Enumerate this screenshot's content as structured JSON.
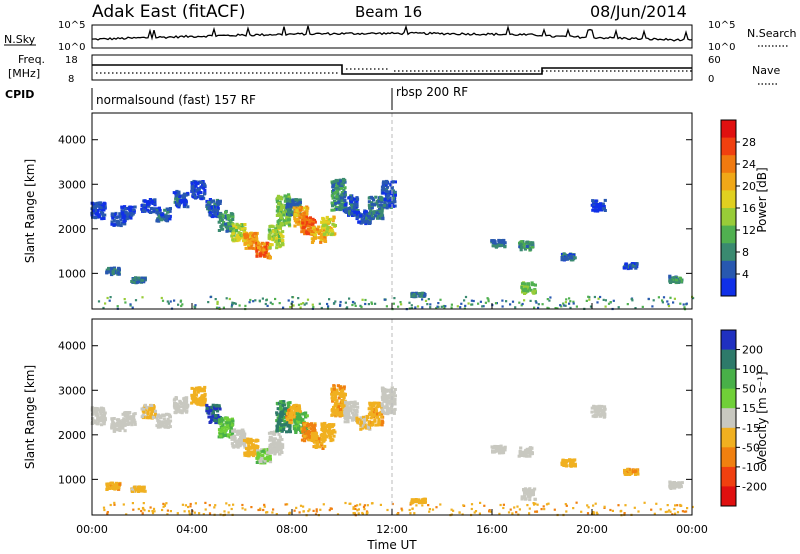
{
  "header": {
    "station": "Adak East (fitACF)",
    "beam": "Beam 16",
    "date": "08/Jun/2014"
  },
  "panels": {
    "nsky_label": "N.Sky",
    "nsearch_label": "N.Search",
    "freq_label_line1": "Freq.",
    "freq_label_line2": "[MHz]",
    "nave_label": "Nave",
    "cpid_label": "CPID",
    "nsky_ticks": [
      "10^5",
      "10^0"
    ],
    "nsearch_ticks": [
      "10^5",
      "10^0"
    ],
    "freq_ticks": [
      "18",
      "8"
    ],
    "nave_ticks": [
      "60",
      "0"
    ],
    "cpid_segments": [
      {
        "start_hour": 0,
        "label": "normalsound (fast) 157 RF"
      },
      {
        "start_hour": 12,
        "label": "rbsp 200 RF"
      }
    ]
  },
  "colorbars": {
    "power": {
      "label": "Power [dB]",
      "ticks": [
        "28",
        "24",
        "20",
        "16",
        "12",
        "8",
        "4"
      ],
      "colors": [
        "#e01010",
        "#f04010",
        "#f07a10",
        "#f0a818",
        "#e0d020",
        "#98cc38",
        "#50b050",
        "#3a8a70",
        "#2858b0",
        "#1030e8"
      ]
    },
    "velocity": {
      "label": "Velocity [m s⁻¹]",
      "ticks": [
        "200",
        "100",
        "50",
        "15",
        "-15",
        "-50",
        "-100",
        "-200"
      ],
      "colors": [
        "#2030c0",
        "#2e7a6a",
        "#48b048",
        "#70d038",
        "#c8c8c0",
        "#f0b020",
        "#f08010",
        "#f04010",
        "#e01010"
      ]
    }
  },
  "chart_data": [
    {
      "type": "heatmap",
      "name": "power",
      "ylabel": "Slant Range [km]",
      "ylim": [
        200,
        4600
      ],
      "yticks": [
        "1000",
        "2000",
        "3000",
        "4000"
      ],
      "xlim": [
        0,
        24
      ],
      "unit": "dB",
      "trace": [
        [
          0.2,
          2450,
          380,
          3
        ],
        [
          1.0,
          2250,
          300,
          3
        ],
        [
          1.4,
          2400,
          280,
          3
        ],
        [
          2.2,
          2550,
          300,
          3
        ],
        [
          2.8,
          2350,
          300,
          4
        ],
        [
          3.5,
          2700,
          350,
          4
        ],
        [
          4.2,
          2900,
          400,
          3
        ],
        [
          4.8,
          2500,
          400,
          4
        ],
        [
          5.3,
          2200,
          450,
          8
        ],
        [
          5.8,
          1950,
          400,
          14
        ],
        [
          6.3,
          1750,
          380,
          20
        ],
        [
          6.8,
          1550,
          350,
          22
        ],
        [
          7.3,
          1850,
          500,
          14
        ],
        [
          7.6,
          2450,
          700,
          12
        ],
        [
          8.0,
          2500,
          400,
          6
        ],
        [
          8.3,
          2300,
          450,
          20
        ],
        [
          8.6,
          2100,
          400,
          24
        ],
        [
          9.0,
          1900,
          350,
          20
        ],
        [
          9.4,
          2100,
          400,
          16
        ],
        [
          9.8,
          2800,
          700,
          8
        ],
        [
          10.3,
          2550,
          450,
          4
        ],
        [
          10.8,
          2300,
          300,
          4
        ],
        [
          11.3,
          2500,
          500,
          6
        ],
        [
          11.8,
          2800,
          600,
          4
        ],
        [
          0.8,
          1080,
          150,
          6
        ],
        [
          1.8,
          880,
          120,
          6
        ],
        [
          13.0,
          550,
          80,
          6
        ],
        [
          16.2,
          1700,
          160,
          6
        ],
        [
          17.3,
          1650,
          200,
          8
        ],
        [
          17.4,
          700,
          250,
          12
        ],
        [
          19.0,
          1400,
          150,
          5
        ],
        [
          20.2,
          2550,
          250,
          3
        ],
        [
          21.5,
          1200,
          120,
          4
        ],
        [
          23.3,
          900,
          150,
          8
        ]
      ]
    },
    {
      "type": "heatmap",
      "name": "velocity",
      "ylabel": "Slant Range [km]",
      "ylim": [
        200,
        4600
      ],
      "yticks": [
        "1000",
        "2000",
        "3000",
        "4000"
      ],
      "xlim": [
        0,
        24
      ],
      "xticks": [
        "00:00",
        "04:00",
        "08:00",
        "12:00",
        "16:00",
        "20:00",
        "00:00"
      ],
      "xlabel": "Time UT",
      "unit": "m/s",
      "trace": [
        [
          0.2,
          2450,
          380,
          0
        ],
        [
          1.0,
          2250,
          300,
          0
        ],
        [
          1.4,
          2400,
          280,
          0
        ],
        [
          2.2,
          2550,
          300,
          -20
        ],
        [
          2.8,
          2350,
          300,
          0
        ],
        [
          3.5,
          2700,
          350,
          0
        ],
        [
          4.2,
          2900,
          400,
          -30
        ],
        [
          4.8,
          2500,
          400,
          150
        ],
        [
          5.3,
          2200,
          450,
          30
        ],
        [
          5.8,
          1950,
          400,
          0
        ],
        [
          6.3,
          1750,
          380,
          -30
        ],
        [
          6.8,
          1550,
          350,
          20
        ],
        [
          7.3,
          1850,
          500,
          0
        ],
        [
          7.6,
          2450,
          700,
          80
        ],
        [
          8.0,
          2500,
          400,
          -40
        ],
        [
          8.3,
          2300,
          450,
          40
        ],
        [
          8.6,
          2100,
          400,
          -60
        ],
        [
          9.0,
          1900,
          350,
          -40
        ],
        [
          9.4,
          2100,
          400,
          -30
        ],
        [
          9.8,
          2800,
          700,
          -40
        ],
        [
          10.3,
          2550,
          450,
          0
        ],
        [
          10.8,
          2300,
          300,
          -20
        ],
        [
          11.3,
          2500,
          500,
          -40
        ],
        [
          11.8,
          2800,
          600,
          0
        ],
        [
          0.8,
          880,
          150,
          -40
        ],
        [
          1.8,
          820,
          120,
          -20
        ],
        [
          13.0,
          550,
          80,
          -30
        ],
        [
          16.2,
          1700,
          160,
          0
        ],
        [
          17.3,
          1650,
          200,
          0
        ],
        [
          17.4,
          700,
          250,
          0
        ],
        [
          19.0,
          1400,
          150,
          -30
        ],
        [
          20.2,
          2550,
          250,
          0
        ],
        [
          21.5,
          1200,
          120,
          -40
        ],
        [
          23.3,
          900,
          150,
          0
        ]
      ]
    }
  ]
}
